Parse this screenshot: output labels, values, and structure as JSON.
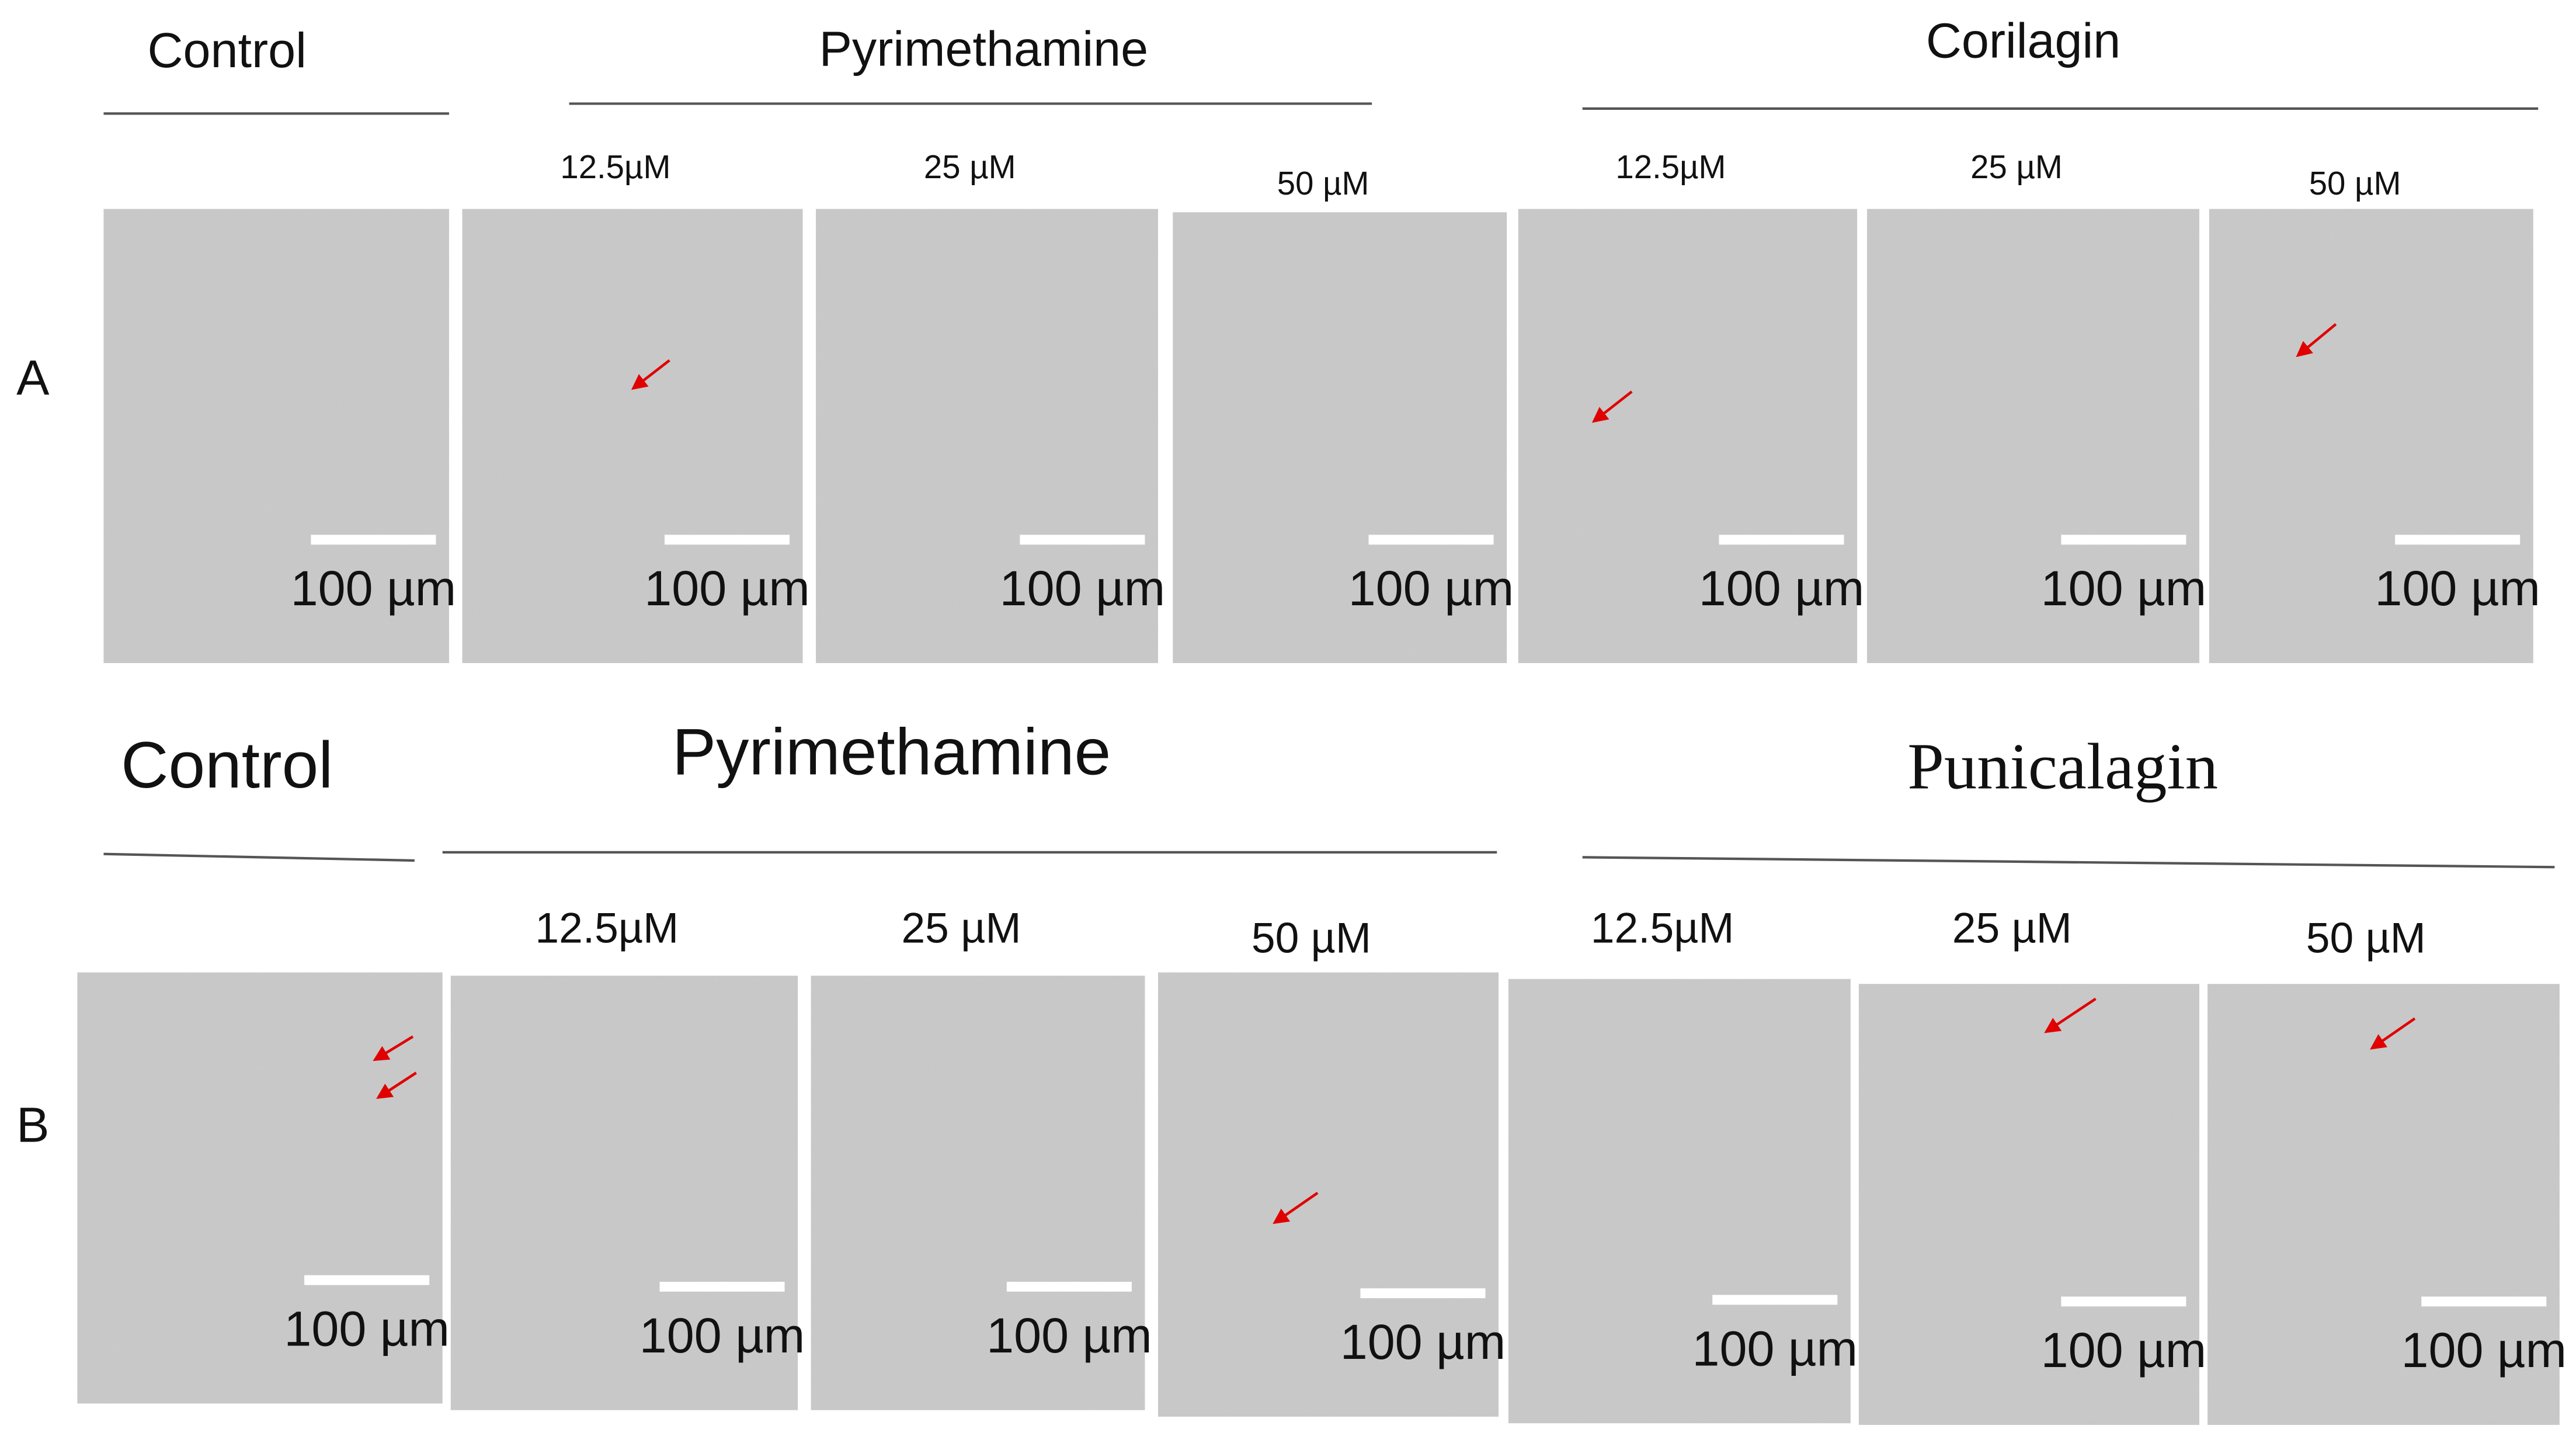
{
  "rows": [
    {
      "label": "A",
      "groups": [
        {
          "title": "Control",
          "panels": [
            {
              "scale_label": "100 µm"
            }
          ]
        },
        {
          "title": "Pyrimethamine",
          "panels": [
            {
              "concentration": "12.5µM",
              "scale_label": "100 µm"
            },
            {
              "concentration": "25 µM",
              "scale_label": "100 µm"
            },
            {
              "concentration": "50  µM",
              "scale_label": "100 µm"
            }
          ]
        },
        {
          "title": "Corilagin",
          "panels": [
            {
              "concentration": "12.5µM",
              "scale_label": "100 µm"
            },
            {
              "concentration": "25 µM",
              "scale_label": "100 µm"
            },
            {
              "concentration": "50  µM",
              "scale_label": "100 µm"
            }
          ]
        }
      ]
    },
    {
      "label": "B",
      "groups": [
        {
          "title": "Control",
          "panels": [
            {
              "scale_label": "100 µm"
            }
          ]
        },
        {
          "title": "Pyrimethamine",
          "panels": [
            {
              "concentration": "12.5µM",
              "scale_label": "100 µm"
            },
            {
              "concentration": "25 µM",
              "scale_label": "100 µm"
            },
            {
              "concentration": "50  µM",
              "scale_label": "100 µm"
            }
          ]
        },
        {
          "title": "Punicalagin",
          "panels": [
            {
              "concentration": "12.5µM",
              "scale_label": "100 µm"
            },
            {
              "concentration": "25 µM",
              "scale_label": "100 µm"
            },
            {
              "concentration": "50  µM",
              "scale_label": "100 µm"
            }
          ]
        }
      ]
    }
  ]
}
